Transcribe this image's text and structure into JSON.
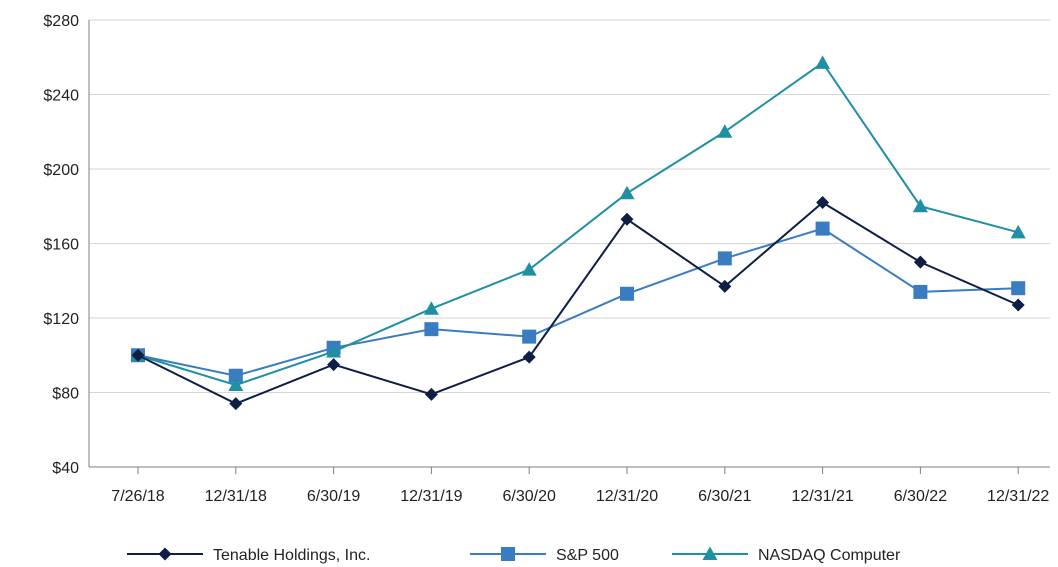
{
  "chart_data": {
    "type": "line",
    "title": "",
    "xlabel": "",
    "ylabel": "",
    "categories": [
      "7/26/18",
      "12/31/18",
      "6/30/19",
      "12/31/19",
      "6/30/20",
      "12/31/20",
      "6/30/21",
      "12/31/21",
      "6/30/22",
      "12/31/22"
    ],
    "ylim": [
      40,
      280
    ],
    "yticks": [
      40,
      80,
      120,
      160,
      200,
      240,
      280
    ],
    "ytick_labels": [
      "$40",
      "$80",
      "$120",
      "$160",
      "$200",
      "$240",
      "$280"
    ],
    "grid": "horizontal",
    "legend_position": "bottom",
    "series": [
      {
        "name": "Tenable Holdings, Inc.",
        "color": "#0f1e45",
        "marker": "diamond",
        "values": [
          100,
          74,
          95,
          79,
          99,
          173,
          137,
          182,
          150,
          127
        ]
      },
      {
        "name": "S&P 500",
        "color": "#3a7cc2",
        "marker": "square",
        "values": [
          100,
          89,
          104,
          114,
          110,
          133,
          152,
          168,
          134,
          136
        ]
      },
      {
        "name": "NASDAQ Computer",
        "color": "#1f8fa3",
        "marker": "triangle",
        "values": [
          100,
          84,
          102,
          125,
          146,
          187,
          220,
          257,
          180,
          166
        ]
      }
    ]
  }
}
